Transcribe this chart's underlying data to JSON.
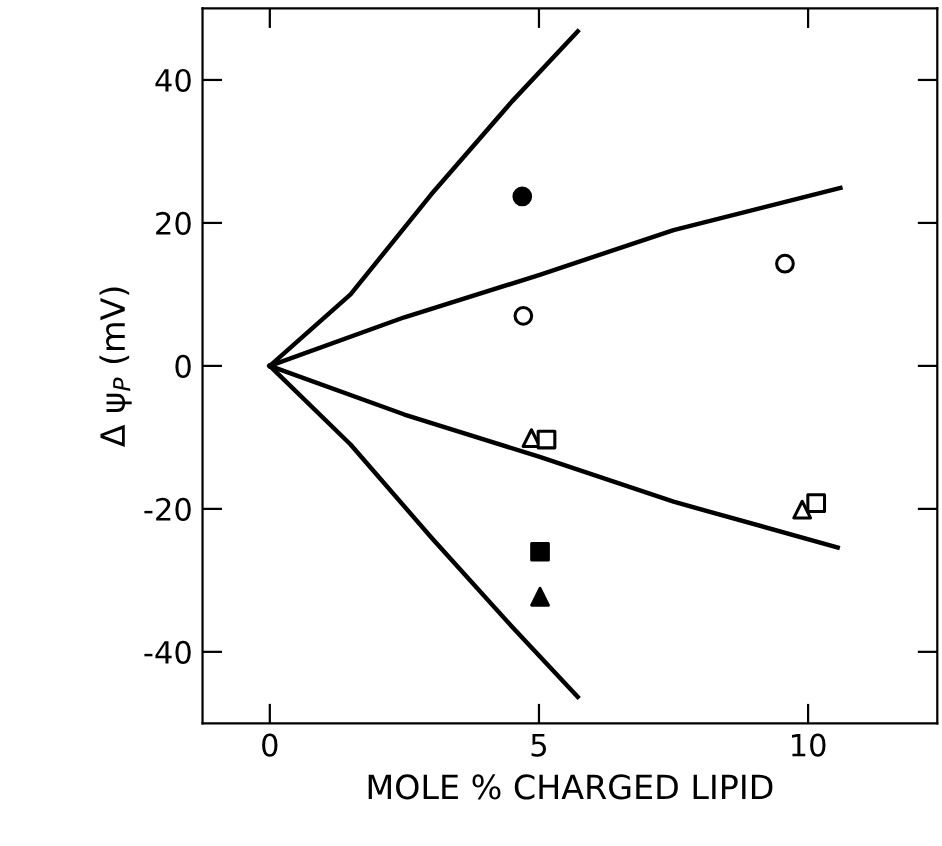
{
  "chart_data": {
    "type": "scatter",
    "xlabel": "MOLE % CHARGED LIPID",
    "ylabel": "Δ ψ$_{P}$ (mV)",
    "xlim": [
      -1.25,
      12.4
    ],
    "ylim": [
      -50,
      50
    ],
    "xticks": [
      0,
      5,
      10
    ],
    "yticks": [
      -40,
      -20,
      0,
      20,
      40
    ],
    "grid": false,
    "legend": false,
    "series": [
      {
        "type": "line",
        "color": "#000000",
        "marker": "none",
        "line_style": "solid",
        "x": [
          0,
          1.5,
          3,
          4.5,
          5.72
        ],
        "values": [
          0,
          10,
          24,
          37,
          46.8
        ]
      },
      {
        "type": "line",
        "color": "#000000",
        "marker": "none",
        "line_style": "solid",
        "x": [
          0,
          2.5,
          5,
          7.5,
          10.6
        ],
        "values": [
          0,
          6.8,
          12.7,
          19,
          24.9
        ]
      },
      {
        "type": "line",
        "color": "#000000",
        "marker": "none",
        "line_style": "solid",
        "x": [
          0,
          2.5,
          5,
          7.5,
          10.55
        ],
        "values": [
          0,
          -6.8,
          -12.7,
          -19,
          -25.4
        ]
      },
      {
        "type": "line",
        "color": "#000000",
        "marker": "none",
        "line_style": "solid",
        "x": [
          0,
          1.5,
          3,
          4.5,
          5.72
        ],
        "values": [
          0,
          -11,
          -24,
          -36.5,
          -46.3
        ]
      },
      {
        "color": "#000000",
        "marker": "circle",
        "x": [
          4.69
        ],
        "values": [
          23.7
        ]
      },
      {
        "color": "#ffffff",
        "marker": "circle",
        "x": [
          4.71,
          9.57
        ],
        "values": [
          7.0,
          14.3
        ]
      },
      {
        "color": "#ffffff",
        "marker": "triangle",
        "x": [
          4.86,
          9.89
        ],
        "values": [
          -10.1,
          -20.1
        ]
      },
      {
        "color": "#ffffff",
        "marker": "square",
        "x": [
          5.14,
          10.15
        ],
        "values": [
          -10.3,
          -19.2
        ]
      },
      {
        "color": "#000000",
        "marker": "square",
        "x": [
          5.02
        ],
        "values": [
          -26
        ]
      },
      {
        "color": "#000000",
        "marker": "triangle",
        "x": [
          5.02
        ],
        "values": [
          -32.3
        ]
      }
    ]
  }
}
